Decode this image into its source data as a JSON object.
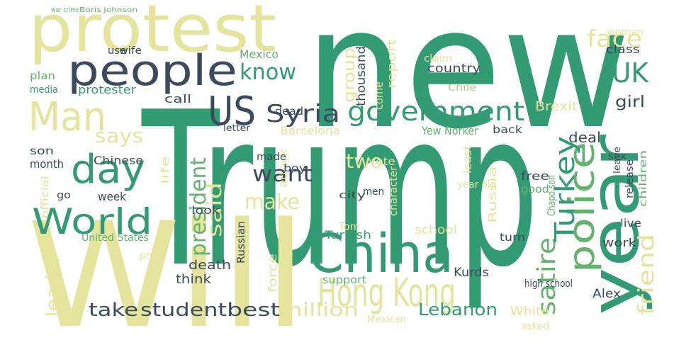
{
  "words": [
    "new",
    "Trump",
    "Will",
    "protest",
    "people",
    "Man",
    "day",
    "World",
    "US",
    "Syria",
    "government",
    "know",
    "China",
    "Hong Kong",
    "year",
    "police",
    "UK",
    "face",
    "Turkey",
    "satire",
    "friend",
    "want",
    "make",
    "president",
    "said",
    "says",
    "take",
    "student",
    "best",
    "million",
    "Lebanon",
    "leader",
    "show",
    "two",
    "group",
    "Brexit",
    "girl",
    "Mexico",
    "deal",
    "class",
    "school",
    "Alex",
    "Kurds",
    "death",
    "think",
    "work",
    "White",
    "Barcelona",
    "Yew Norker",
    "country",
    "vote",
    "thousand",
    "report",
    "come",
    "attack",
    "Russia",
    "Chinese",
    "month",
    "week",
    "son",
    "plan",
    "media",
    "protester",
    "call",
    "dead",
    "free",
    "good",
    "look",
    "Turkish",
    "Tom",
    "support",
    "force",
    "Russian",
    "United States",
    "official",
    "life",
    "live",
    "children",
    "men",
    "city",
    "character",
    "made",
    "boy",
    "back",
    "release",
    "woman",
    "turn",
    "least",
    "year old",
    "Chapo son",
    "high school",
    "Mexican",
    "asked",
    "use",
    "wife",
    "claim",
    "letter",
    "pro",
    "go",
    "sex",
    "leave",
    "Chile",
    "Boris Johnson",
    "war crime"
  ]
}
